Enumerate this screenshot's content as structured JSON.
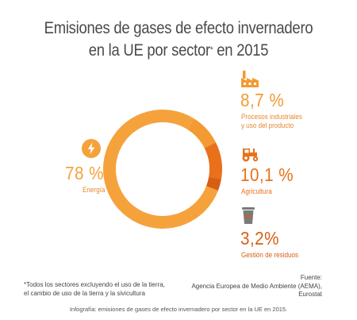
{
  "title": {
    "line1": "Emisiones de gases de efecto invernadero",
    "line2": "en la UE por sector",
    "sup": "*",
    "line2_end": " en 2015"
  },
  "chart_data": {
    "type": "pie",
    "variant": "donut",
    "slices": [
      {
        "label": "Energía",
        "value": 78,
        "value_text": "78 %",
        "color": "#f5a23c",
        "icon": "lightning-icon"
      },
      {
        "label": "Procesos industriales y uso del producto",
        "label_lines": [
          "Procesos industriales",
          "y uso del producto"
        ],
        "value": 8.7,
        "value_text": "8,7 %",
        "color": "#f39a32",
        "icon": "factory-icon"
      },
      {
        "label": "Agricultura",
        "value": 10.1,
        "value_text": "10,1 %",
        "color": "#e9711c",
        "icon": "tractor-icon"
      },
      {
        "label": "Gestión de residuos",
        "value": 3.2,
        "value_text": "3,2%",
        "color": "#d75f14",
        "icon": "trash-bin-icon"
      }
    ]
  },
  "footnote": {
    "line1": "*Todos los sectores excluyendo el uso de la tierra,",
    "line2": "el cambio de uso de la tierra y la sivicultura"
  },
  "source": {
    "line1": "Fuente:",
    "line2": "Agencia Europea de Medio Ambiente (AEMA),",
    "line3": "Eurostat"
  },
  "caption": "Infografía: emisiones de gases de efecto invernadero por sector en la UE en 2015.",
  "colors": {
    "accent": "#f5a23c",
    "label": "#e6882e",
    "dark_segment": "#d75f14",
    "icon_gray": "#7a7a7a",
    "title": "#4a4a4a"
  }
}
